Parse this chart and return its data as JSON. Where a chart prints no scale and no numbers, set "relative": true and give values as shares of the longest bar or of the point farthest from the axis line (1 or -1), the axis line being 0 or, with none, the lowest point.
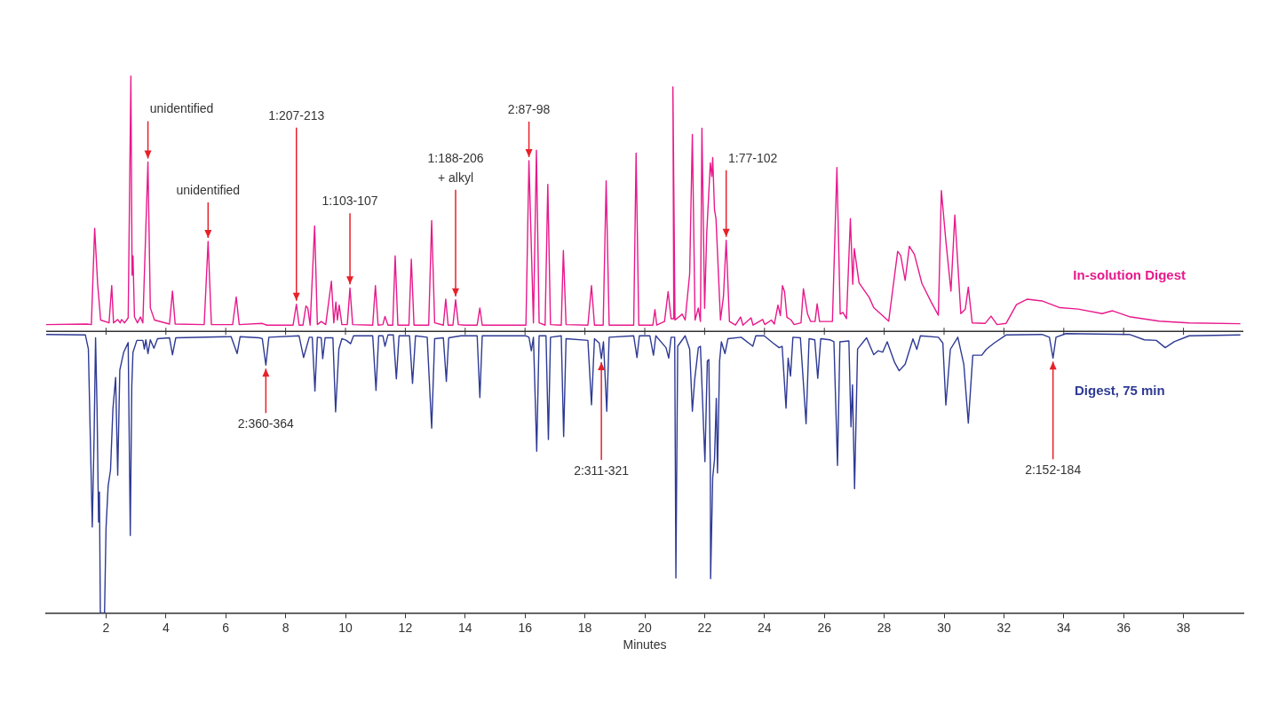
{
  "chart_data": {
    "type": "line",
    "relative": true,
    "marker": "none",
    "xlabel": "Minutes",
    "xlim": [
      0,
      40
    ],
    "xticks": [
      2,
      4,
      6,
      8,
      10,
      12,
      14,
      16,
      18,
      20,
      22,
      24,
      26,
      28,
      30,
      32,
      34,
      36,
      38
    ],
    "series": [
      {
        "name": "In-solution Digest",
        "color": "#e8198b",
        "x": [
          0,
          1.36,
          1.51,
          1.62,
          1.72,
          1.82,
          2.1,
          2.19,
          2.25,
          2.39,
          2.47,
          2.52,
          2.62,
          2.74,
          2.83,
          2.87,
          2.9,
          2.95,
          3.05,
          3.15,
          3.23,
          3.4,
          3.48,
          3.62,
          4.12,
          4.22,
          4.31,
          5.28,
          5.41,
          5.52,
          6.23,
          6.35,
          6.45,
          7.22,
          7.37,
          8.25,
          8.36,
          8.45,
          8.58,
          8.68,
          8.74,
          8.82,
          8.97,
          9.06,
          9.19,
          9.34,
          9.53,
          9.61,
          9.68,
          9.73,
          9.79,
          9.88,
          10.06,
          10.15,
          10.24,
          10.91,
          11.0,
          11.09,
          11.25,
          11.32,
          11.42,
          11.58,
          11.66,
          11.75,
          12.12,
          12.2,
          12.29,
          12.78,
          12.88,
          12.98,
          13.27,
          13.35,
          13.43,
          13.59,
          13.68,
          13.77,
          13.96,
          14.4,
          14.49,
          14.57,
          16.03,
          16.13,
          16.28,
          16.38,
          16.47,
          16.67,
          16.76,
          16.85,
          17.21,
          17.28,
          17.37,
          18.1,
          18.22,
          18.32,
          18.61,
          18.71,
          18.81,
          19.63,
          19.71,
          19.8,
          20.27,
          20.34,
          20.4,
          20.66,
          20.78,
          20.88,
          20.97,
          20.94,
          21.01,
          21.25,
          21.35,
          21.5,
          21.59,
          21.68,
          21.79,
          21.86,
          21.91,
          22.0,
          22.07,
          22.19,
          22.24,
          22.27,
          22.33,
          22.38,
          22.53,
          22.63,
          22.72,
          22.83,
          23.03,
          23.2,
          23.28,
          23.55,
          23.62,
          23.94,
          24.01,
          24.23,
          24.33,
          24.45,
          24.53,
          24.6,
          24.67,
          24.75,
          24.89,
          24.99,
          25.22,
          25.3,
          25.44,
          25.54,
          25.69,
          25.76,
          25.84,
          26.27,
          26.42,
          26.53,
          26.62,
          26.74,
          26.87,
          26.95,
          27.0,
          27.16,
          27.36,
          27.5,
          27.65,
          28.15,
          28.45,
          28.55,
          28.7,
          28.84,
          29.01,
          29.26,
          29.56,
          29.81,
          29.91,
          30.06,
          30.23,
          30.36,
          30.56,
          30.71,
          30.81,
          30.94,
          31.37,
          31.57,
          31.77,
          32.07,
          32.42,
          32.77,
          33.27,
          33.87,
          34.48,
          35.28,
          35.63,
          36.19,
          37.19,
          38.19,
          39.9
        ],
        "values": [
          0.024,
          0.026,
          0.024,
          0.366,
          0.167,
          0.04,
          0.03,
          0.162,
          0.03,
          0.042,
          0.03,
          0.042,
          0.03,
          0.048,
          0.906,
          0.199,
          0.268,
          0.051,
          0.03,
          0.051,
          0.03,
          0.601,
          0.083,
          0.04,
          0.026,
          0.143,
          0.026,
          0.024,
          0.319,
          0.024,
          0.024,
          0.122,
          0.024,
          0.028,
          0.022,
          0.022,
          0.096,
          0.022,
          0.022,
          0.09,
          0.083,
          0.022,
          0.374,
          0.024,
          0.035,
          0.024,
          0.178,
          0.03,
          0.104,
          0.04,
          0.093,
          0.024,
          0.024,
          0.154,
          0.024,
          0.022,
          0.162,
          0.022,
          0.024,
          0.053,
          0.022,
          0.022,
          0.268,
          0.022,
          0.022,
          0.256,
          0.022,
          0.022,
          0.393,
          0.03,
          0.022,
          0.114,
          0.022,
          0.022,
          0.112,
          0.024,
          0.022,
          0.022,
          0.083,
          0.022,
          0.022,
          0.606,
          0.03,
          0.643,
          0.03,
          0.022,
          0.522,
          0.024,
          0.022,
          0.287,
          0.024,
          0.022,
          0.162,
          0.022,
          0.022,
          0.534,
          0.022,
          0.022,
          0.633,
          0.022,
          0.022,
          0.077,
          0.022,
          0.035,
          0.141,
          0.045,
          0.045,
          0.868,
          0.04,
          0.061,
          0.04,
          0.204,
          0.699,
          0.04,
          0.083,
          0.035,
          0.721,
          0.082,
          0.347,
          0.598,
          0.55,
          0.617,
          0.432,
          0.4,
          0.04,
          0.125,
          0.323,
          0.035,
          0.022,
          0.051,
          0.022,
          0.048,
          0.022,
          0.042,
          0.024,
          0.04,
          0.026,
          0.093,
          0.056,
          0.162,
          0.141,
          0.05,
          0.04,
          0.024,
          0.03,
          0.151,
          0.061,
          0.035,
          0.035,
          0.098,
          0.035,
          0.035,
          0.582,
          0.061,
          0.067,
          0.045,
          0.4,
          0.167,
          0.294,
          0.172,
          0.141,
          0.12,
          0.084,
          0.036,
          0.284,
          0.27,
          0.181,
          0.302,
          0.273,
          0.17,
          0.106,
          0.057,
          0.5,
          0.321,
          0.143,
          0.413,
          0.063,
          0.079,
          0.157,
          0.03,
          0.028,
          0.054,
          0.024,
          0.028,
          0.095,
          0.114,
          0.108,
          0.084,
          0.079,
          0.063,
          0.073,
          0.052,
          0.036,
          0.03,
          0.027
        ]
      },
      {
        "name": "Digest, 75 min",
        "color": "#2e3a94",
        "x": [
          0,
          1.31,
          1.41,
          1.54,
          1.6,
          1.65,
          1.7,
          1.75,
          1.78,
          1.81,
          1.95,
          2.0,
          2.07,
          2.15,
          2.23,
          2.32,
          2.39,
          2.46,
          2.59,
          2.74,
          2.81,
          2.86,
          2.9,
          3.03,
          3.23,
          3.28,
          3.33,
          3.4,
          3.48,
          3.6,
          3.72,
          4.12,
          4.22,
          4.33,
          6.18,
          6.38,
          6.48,
          7.12,
          7.22,
          7.34,
          7.44,
          8.45,
          8.6,
          8.79,
          8.89,
          8.98,
          9.06,
          9.19,
          9.24,
          9.32,
          9.58,
          9.67,
          9.78,
          9.88,
          10.03,
          10.17,
          10.27,
          10.91,
          11.02,
          11.11,
          11.25,
          11.32,
          11.42,
          11.6,
          11.7,
          11.79,
          12.14,
          12.24,
          12.34,
          12.73,
          12.88,
          12.98,
          13.27,
          13.37,
          13.45,
          13.86,
          13.96,
          14.4,
          14.49,
          14.57,
          16.03,
          16.13,
          16.21,
          16.28,
          16.39,
          16.47,
          16.7,
          16.78,
          16.85,
          17.21,
          17.29,
          17.37,
          18.1,
          18.22,
          18.32,
          18.48,
          18.55,
          18.62,
          18.73,
          18.81,
          19.63,
          19.74,
          19.82,
          20.17,
          20.29,
          20.37,
          20.71,
          20.8,
          20.88,
          21.0,
          21.04,
          21.1,
          21.35,
          21.5,
          21.59,
          21.67,
          21.79,
          21.86,
          22.01,
          22.09,
          22.14,
          22.19,
          22.2,
          22.27,
          22.33,
          22.39,
          22.43,
          22.5,
          22.56,
          22.68,
          22.78,
          23.22,
          23.61,
          23.71,
          23.99,
          24.29,
          24.49,
          24.59,
          24.72,
          24.79,
          24.87,
          24.95,
          25.2,
          25.39,
          25.49,
          25.68,
          25.78,
          25.88,
          26.18,
          26.32,
          26.44,
          26.52,
          26.82,
          26.89,
          26.94,
          27.01,
          27.11,
          27.41,
          27.65,
          27.8,
          27.95,
          28.1,
          28.35,
          28.5,
          28.7,
          28.96,
          29.09,
          29.21,
          29.81,
          29.96,
          30.06,
          30.21,
          30.46,
          30.66,
          30.81,
          30.96,
          31.26,
          31.41,
          31.67,
          32.07,
          33.27,
          33.52,
          33.64,
          33.74,
          34.07,
          36.19,
          36.69,
          37.09,
          37.39,
          37.69,
          38.19,
          39.9
        ],
        "values": [
          -0.011,
          -0.013,
          -0.063,
          -0.695,
          -0.38,
          -0.023,
          -0.275,
          -0.677,
          -0.571,
          -1,
          -1,
          -0.698,
          -0.55,
          -0.492,
          -0.275,
          -0.164,
          -0.511,
          -0.138,
          -0.074,
          -0.04,
          -0.725,
          -0.196,
          -0.074,
          -0.032,
          -0.032,
          -0.063,
          -0.03,
          -0.079,
          -0.03,
          -0.06,
          -0.026,
          -0.023,
          -0.083,
          -0.023,
          -0.019,
          -0.079,
          -0.019,
          -0.023,
          -0.026,
          -0.12,
          -0.021,
          -0.016,
          -0.093,
          -0.021,
          -0.021,
          -0.212,
          -0.021,
          -0.023,
          -0.097,
          -0.023,
          -0.023,
          -0.286,
          -0.063,
          -0.026,
          -0.032,
          -0.044,
          -0.016,
          -0.016,
          -0.21,
          -0.016,
          -0.016,
          -0.053,
          -0.013,
          -0.013,
          -0.169,
          -0.016,
          -0.016,
          -0.185,
          -0.016,
          -0.021,
          -0.344,
          -0.026,
          -0.023,
          -0.178,
          -0.023,
          -0.016,
          -0.016,
          -0.016,
          -0.235,
          -0.016,
          -0.016,
          -0.021,
          -0.069,
          -0.021,
          -0.426,
          -0.016,
          -0.016,
          -0.384,
          -0.021,
          -0.016,
          -0.374,
          -0.026,
          -0.032,
          -0.261,
          -0.026,
          -0.042,
          -0.097,
          -0.037,
          -0.284,
          -0.021,
          -0.016,
          -0.093,
          -0.016,
          -0.016,
          -0.085,
          -0.016,
          -0.058,
          -0.095,
          -0.021,
          -0.021,
          -0.876,
          -0.053,
          -0.016,
          -0.063,
          -0.284,
          -0.169,
          -0.058,
          -0.053,
          -0.463,
          -0.106,
          -0.1,
          -0.487,
          -0.878,
          -0.519,
          -0.455,
          -0.238,
          -0.503,
          -0.106,
          -0.037,
          -0.079,
          -0.026,
          -0.021,
          -0.053,
          -0.016,
          -0.016,
          -0.042,
          -0.058,
          -0.053,
          -0.273,
          -0.095,
          -0.159,
          -0.021,
          -0.023,
          -0.328,
          -0.026,
          -0.03,
          -0.167,
          -0.026,
          -0.03,
          -0.037,
          -0.476,
          -0.037,
          -0.034,
          -0.339,
          -0.19,
          -0.559,
          -0.063,
          -0.023,
          -0.083,
          -0.069,
          -0.074,
          -0.037,
          -0.111,
          -0.14,
          -0.117,
          -0.027,
          -0.064,
          -0.016,
          -0.021,
          -0.042,
          -0.262,
          -0.064,
          -0.021,
          -0.117,
          -0.326,
          -0.085,
          -0.085,
          -0.064,
          -0.042,
          -0.013,
          -0.011,
          -0.021,
          -0.095,
          -0.021,
          -0.008,
          -0.011,
          -0.03,
          -0.032,
          -0.058,
          -0.037,
          -0.016,
          -0.013
        ]
      }
    ],
    "annotations": [
      {
        "text": "unidentified",
        "x": 3.4,
        "y": 0.601
      },
      {
        "text": "unidentified",
        "x": 5.41,
        "y": 0.319
      },
      {
        "text": "1:207-213",
        "x": 8.36,
        "y": 0.096
      },
      {
        "text": "1:103-107",
        "x": 10.15,
        "y": 0.154
      },
      {
        "text": "1:188-206\n+ alkyl",
        "x": 13.68,
        "y": 0.112
      },
      {
        "text": "2:87-98",
        "x": 16.13,
        "y": 0.606
      },
      {
        "text": "1:77-102",
        "x": 22.72,
        "y": 0.323
      },
      {
        "text": "2:360-364",
        "x": 7.34,
        "y": -0.12
      },
      {
        "text": "2:311-321",
        "x": 18.55,
        "y": -0.097
      },
      {
        "text": "2:152-184",
        "x": 33.64,
        "y": -0.095
      }
    ]
  }
}
